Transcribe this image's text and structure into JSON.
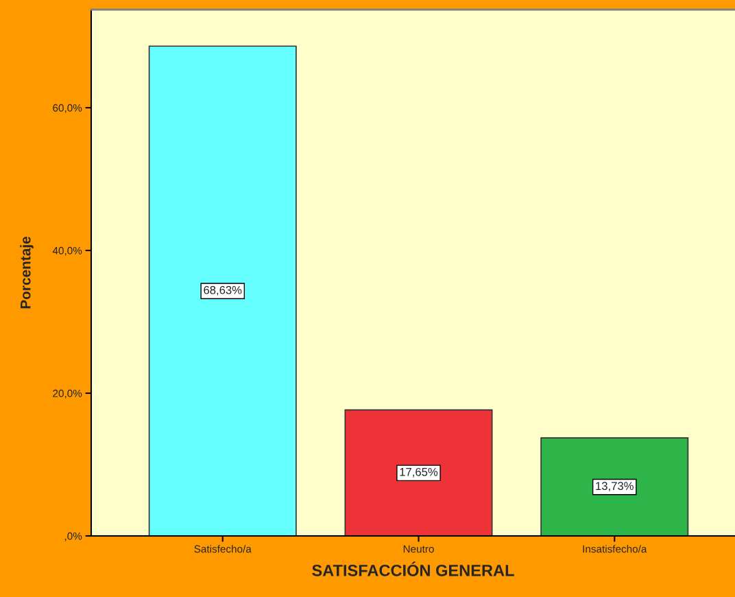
{
  "chart_data": {
    "type": "bar",
    "xlabel": "SATISFACCIÓN GENERAL",
    "ylabel": "Porcentaje",
    "categories": [
      "Satisfecho/a",
      "Neutro",
      "Insatisfecho/a"
    ],
    "values": [
      68.63,
      17.65,
      13.73
    ],
    "colors": [
      "#66ffff",
      "#ee3338",
      "#2db54a"
    ],
    "value_labels": [
      "68,63%",
      "17,65%",
      "13,73%"
    ],
    "ylim": [
      0,
      73.75
    ],
    "yticks": [
      {
        "value": 0,
        "label": ",0%"
      },
      {
        "value": 20,
        "label": "20,0%"
      },
      {
        "value": 40,
        "label": "40,0%"
      },
      {
        "value": 60,
        "label": "60,0%"
      }
    ],
    "grid": false,
    "legend": false
  }
}
